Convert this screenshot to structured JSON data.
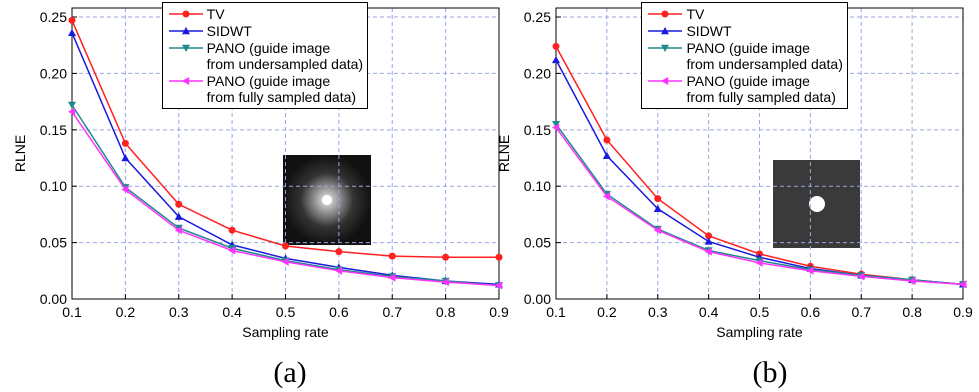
{
  "chart_data": [
    {
      "type": "line",
      "caption": "(a)",
      "x_label": "Sampling rate",
      "y_label": "RLNE",
      "x": [
        0.1,
        0.2,
        0.3,
        0.4,
        0.5,
        0.6,
        0.7,
        0.8,
        0.9
      ],
      "xlim": [
        0.1,
        0.9
      ],
      "xticks": [
        0.1,
        0.2,
        0.3,
        0.4,
        0.5,
        0.6,
        0.7,
        0.8,
        0.9
      ],
      "ylim": [
        0,
        0.258
      ],
      "yticks": [
        {
          "value": 0,
          "label": "0.00"
        },
        0.05,
        {
          "value": 0.1,
          "label": "0.10"
        },
        0.15,
        {
          "value": 0.2,
          "label": "0.20"
        },
        0.25
      ],
      "grid": true,
      "series": [
        {
          "name": "TV",
          "color": "#ff2020",
          "marker": "circle",
          "values": [
            0.247,
            0.138,
            0.084,
            0.061,
            0.047,
            0.042,
            0.038,
            0.037,
            0.037
          ]
        },
        {
          "name": "SIDWT",
          "color": "#1a1adf",
          "marker": "triangle-up",
          "values": [
            0.236,
            0.125,
            0.073,
            0.048,
            0.036,
            0.028,
            0.021,
            0.016,
            0.013
          ]
        },
        {
          "name": "PANO (guide image\nfrom undersampled data)",
          "color": "#1f8a8a",
          "marker": "triangle-down",
          "values": [
            0.172,
            0.099,
            0.063,
            0.045,
            0.034,
            0.026,
            0.02,
            0.016,
            0.012
          ]
        },
        {
          "name": "PANO (guide image\nfrom fully sampled data)",
          "color": "#ff33ff",
          "marker": "triangle-left",
          "values": [
            0.166,
            0.097,
            0.061,
            0.043,
            0.033,
            0.025,
            0.019,
            0.015,
            0.012
          ]
        }
      ]
    },
    {
      "type": "line",
      "caption": "(b)",
      "x_label": "Sampling rate",
      "y_label": "RLNE",
      "x": [
        0.1,
        0.2,
        0.3,
        0.4,
        0.5,
        0.6,
        0.7,
        0.8,
        0.9
      ],
      "xlim": [
        0.1,
        0.9
      ],
      "xticks": [
        0.1,
        0.2,
        0.3,
        0.4,
        0.5,
        0.6,
        0.7,
        0.8,
        0.9
      ],
      "ylim": [
        0,
        0.258
      ],
      "yticks": [
        {
          "value": 0,
          "label": "0.00"
        },
        0.05,
        {
          "value": 0.1,
          "label": "0.10"
        },
        0.15,
        {
          "value": 0.2,
          "label": "0.20"
        },
        0.25
      ],
      "grid": true,
      "series": [
        {
          "name": "TV",
          "color": "#ff2020",
          "marker": "circle",
          "values": [
            0.224,
            0.141,
            0.089,
            0.056,
            0.04,
            0.029,
            0.022,
            0.017,
            0.013
          ]
        },
        {
          "name": "SIDWT",
          "color": "#1a1adf",
          "marker": "triangle-up",
          "values": [
            0.212,
            0.127,
            0.08,
            0.051,
            0.037,
            0.027,
            0.021,
            0.017,
            0.013
          ]
        },
        {
          "name": "PANO (guide image\nfrom undersampled data)",
          "color": "#1f8a8a",
          "marker": "triangle-down",
          "values": [
            0.155,
            0.093,
            0.062,
            0.043,
            0.034,
            0.026,
            0.021,
            0.017,
            0.013
          ]
        },
        {
          "name": "PANO (guide image\nfrom fully sampled data)",
          "color": "#ff33ff",
          "marker": "triangle-left",
          "values": [
            0.152,
            0.091,
            0.061,
            0.042,
            0.032,
            0.025,
            0.02,
            0.016,
            0.013
          ]
        }
      ]
    }
  ]
}
